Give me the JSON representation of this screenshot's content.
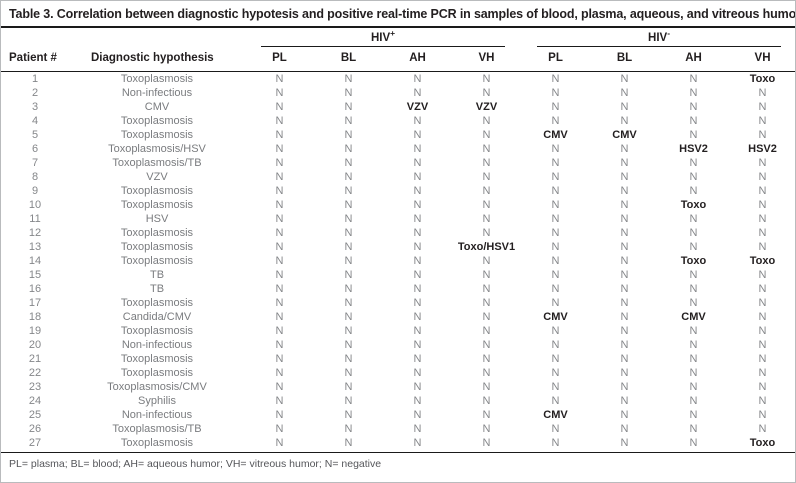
{
  "table": {
    "title": "Table 3. Correlation between diagnostic hypotesis and positive real-time PCR in samples of blood, plasma, aqueous, and vitreous humor",
    "group_headers": [
      {
        "label": "HIV",
        "sup": "+"
      },
      {
        "label": "HIV",
        "sup": "-"
      }
    ],
    "columns": [
      "Patient #",
      "Diagnostic hypothesis",
      "PL",
      "BL",
      "AH",
      "VH",
      "PL",
      "BL",
      "AH",
      "VH"
    ],
    "negative_symbol": "N",
    "text_color_positive": "#231f20",
    "text_color_negative": "#85878a",
    "rows": [
      {
        "patient": "1",
        "diagnosis": "Toxoplasmosis",
        "results": [
          "N",
          "N",
          "N",
          "N",
          "N",
          "N",
          "N",
          "Toxo"
        ]
      },
      {
        "patient": "2",
        "diagnosis": "Non-infectious",
        "results": [
          "N",
          "N",
          "N",
          "N",
          "N",
          "N",
          "N",
          "N"
        ]
      },
      {
        "patient": "3",
        "diagnosis": "CMV",
        "results": [
          "N",
          "N",
          "VZV",
          "VZV",
          "N",
          "N",
          "N",
          "N"
        ]
      },
      {
        "patient": "4",
        "diagnosis": "Toxoplasmosis",
        "results": [
          "N",
          "N",
          "N",
          "N",
          "N",
          "N",
          "N",
          "N"
        ]
      },
      {
        "patient": "5",
        "diagnosis": "Toxoplasmosis",
        "results": [
          "N",
          "N",
          "N",
          "N",
          "CMV",
          "CMV",
          "N",
          "N"
        ]
      },
      {
        "patient": "6",
        "diagnosis": "Toxoplasmosis/HSV",
        "results": [
          "N",
          "N",
          "N",
          "N",
          "N",
          "N",
          "HSV2",
          "HSV2"
        ]
      },
      {
        "patient": "7",
        "diagnosis": "Toxoplasmosis/TB",
        "results": [
          "N",
          "N",
          "N",
          "N",
          "N",
          "N",
          "N",
          "N"
        ]
      },
      {
        "patient": "8",
        "diagnosis": "VZV",
        "results": [
          "N",
          "N",
          "N",
          "N",
          "N",
          "N",
          "N",
          "N"
        ]
      },
      {
        "patient": "9",
        "diagnosis": "Toxoplasmosis",
        "results": [
          "N",
          "N",
          "N",
          "N",
          "N",
          "N",
          "N",
          "N"
        ]
      },
      {
        "patient": "10",
        "diagnosis": "Toxoplasmosis",
        "results": [
          "N",
          "N",
          "N",
          "N",
          "N",
          "N",
          "Toxo",
          "N"
        ]
      },
      {
        "patient": "11",
        "diagnosis": "HSV",
        "results": [
          "N",
          "N",
          "N",
          "N",
          "N",
          "N",
          "N",
          "N"
        ]
      },
      {
        "patient": "12",
        "diagnosis": "Toxoplasmosis",
        "results": [
          "N",
          "N",
          "N",
          "N",
          "N",
          "N",
          "N",
          "N"
        ]
      },
      {
        "patient": "13",
        "diagnosis": "Toxoplasmosis",
        "results": [
          "N",
          "N",
          "N",
          "Toxo/HSV1",
          "N",
          "N",
          "N",
          "N"
        ]
      },
      {
        "patient": "14",
        "diagnosis": "Toxoplasmosis",
        "results": [
          "N",
          "N",
          "N",
          "N",
          "N",
          "N",
          "Toxo",
          "Toxo"
        ]
      },
      {
        "patient": "15",
        "diagnosis": "TB",
        "results": [
          "N",
          "N",
          "N",
          "N",
          "N",
          "N",
          "N",
          "N"
        ]
      },
      {
        "patient": "16",
        "diagnosis": "TB",
        "results": [
          "N",
          "N",
          "N",
          "N",
          "N",
          "N",
          "N",
          "N"
        ]
      },
      {
        "patient": "17",
        "diagnosis": "Toxoplasmosis",
        "results": [
          "N",
          "N",
          "N",
          "N",
          "N",
          "N",
          "N",
          "N"
        ]
      },
      {
        "patient": "18",
        "diagnosis": "Candida/CMV",
        "results": [
          "N",
          "N",
          "N",
          "N",
          "CMV",
          "N",
          "CMV",
          "N"
        ]
      },
      {
        "patient": "19",
        "diagnosis": "Toxoplasmosis",
        "results": [
          "N",
          "N",
          "N",
          "N",
          "N",
          "N",
          "N",
          "N"
        ]
      },
      {
        "patient": "20",
        "diagnosis": "Non-infectious",
        "results": [
          "N",
          "N",
          "N",
          "N",
          "N",
          "N",
          "N",
          "N"
        ]
      },
      {
        "patient": "21",
        "diagnosis": "Toxoplasmosis",
        "results": [
          "N",
          "N",
          "N",
          "N",
          "N",
          "N",
          "N",
          "N"
        ]
      },
      {
        "patient": "22",
        "diagnosis": "Toxoplasmosis",
        "results": [
          "N",
          "N",
          "N",
          "N",
          "N",
          "N",
          "N",
          "N"
        ]
      },
      {
        "patient": "23",
        "diagnosis": "Toxoplasmosis/CMV",
        "results": [
          "N",
          "N",
          "N",
          "N",
          "N",
          "N",
          "N",
          "N"
        ]
      },
      {
        "patient": "24",
        "diagnosis": "Syphilis",
        "results": [
          "N",
          "N",
          "N",
          "N",
          "N",
          "N",
          "N",
          "N"
        ]
      },
      {
        "patient": "25",
        "diagnosis": "Non-infectious",
        "results": [
          "N",
          "N",
          "N",
          "N",
          "CMV",
          "N",
          "N",
          "N"
        ]
      },
      {
        "patient": "26",
        "diagnosis": "Toxoplasmosis/TB",
        "results": [
          "N",
          "N",
          "N",
          "N",
          "N",
          "N",
          "N",
          "N"
        ]
      },
      {
        "patient": "27",
        "diagnosis": "Toxoplasmosis",
        "results": [
          "N",
          "N",
          "N",
          "N",
          "N",
          "N",
          "N",
          "Toxo"
        ]
      }
    ],
    "footnote": "PL= plasma; BL= blood; AH= aqueous humor; VH= vitreous humor;  N= negative"
  }
}
